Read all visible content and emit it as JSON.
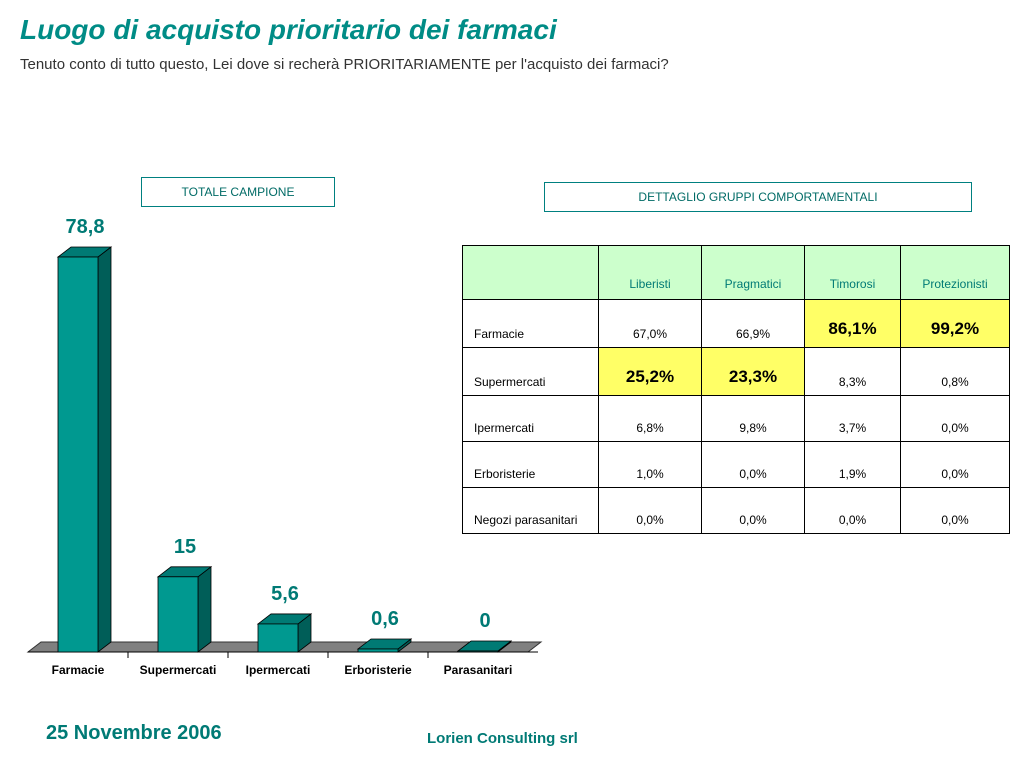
{
  "header": {
    "title": "Luogo di acquisto prioritario dei farmaci",
    "subtitle": "Tenuto conto di tutto questo, Lei dove si recherà PRIORITARIAMENTE  per l'acquisto dei farmaci?"
  },
  "labels": {
    "total": "TOTALE CAMPIONE",
    "detail": "DETTAGLIO GRUPPI COMPORTAMENTALI"
  },
  "chart_data": [
    {
      "type": "bar",
      "categories": [
        "Farmacie",
        "Supermercati",
        "Ipermercati",
        "Erboristerie",
        "Parasanitari"
      ],
      "values": [
        78.8,
        15,
        5.6,
        0.6,
        0
      ],
      "value_labels": [
        "78,8",
        "15",
        "5,6",
        "0,6",
        "0"
      ],
      "ylim": [
        0,
        78.8
      ],
      "grid": false,
      "colors": {
        "front": "#009990",
        "side": "#005e58",
        "top": "#007a74",
        "floor": "#808080"
      }
    },
    {
      "type": "table",
      "columns": [
        "",
        "Liberisti",
        "Pragmatici",
        "Timorosi",
        "Protezionisti"
      ],
      "rows": [
        {
          "label": "Farmacie",
          "values": [
            "67,0%",
            "66,9%",
            "86,1%",
            "99,2%"
          ],
          "highlight": [
            false,
            false,
            true,
            true
          ]
        },
        {
          "label": "Supermercati",
          "values": [
            "25,2%",
            "23,3%",
            "8,3%",
            "0,8%"
          ],
          "highlight": [
            true,
            true,
            false,
            false
          ]
        },
        {
          "label": "Ipermercati",
          "values": [
            "6,8%",
            "9,8%",
            "3,7%",
            "0,0%"
          ],
          "highlight": [
            false,
            false,
            false,
            false
          ]
        },
        {
          "label": "Erboristerie",
          "values": [
            "1,0%",
            "0,0%",
            "1,9%",
            "0,0%"
          ],
          "highlight": [
            false,
            false,
            false,
            false
          ]
        },
        {
          "label": "Negozi parasanitari",
          "values": [
            "0,0%",
            "0,0%",
            "0,0%",
            "0,0%"
          ],
          "highlight": [
            false,
            false,
            false,
            false
          ]
        }
      ],
      "header_color": "#ccffcc",
      "highlight_color": "#ffff66"
    }
  ],
  "footer": {
    "date": "25 Novembre 2006",
    "company": "Lorien Consulting srl"
  }
}
